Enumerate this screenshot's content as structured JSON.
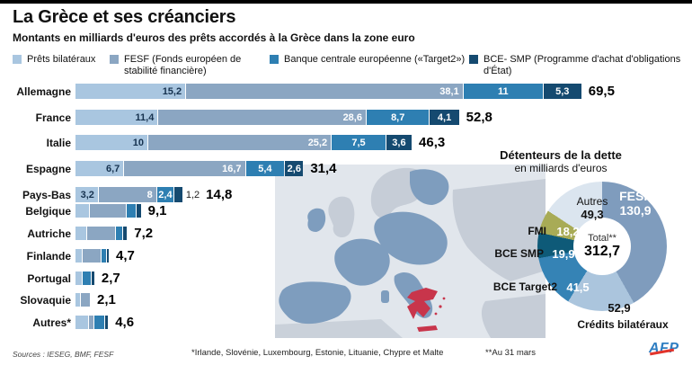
{
  "header": {
    "title": "La Grèce et ses créanciers",
    "subtitle": "Montants en milliards d'euros des prêts accordés à la Grèce dans la zone euro"
  },
  "legend": [
    {
      "label": "Prêts bilatéraux",
      "color": "#a9c6e0"
    },
    {
      "label": "FESF (Fonds européen de stabilité financière)",
      "color": "#8ba6c2"
    },
    {
      "label": "Banque centrale européenne («Target2»)",
      "color": "#2e7fb2"
    },
    {
      "label": "BCE- SMP (Programme d'achat d'obligations d'État)",
      "color": "#154a70"
    }
  ],
  "chart_data": [
    {
      "type": "bar",
      "stacked": true,
      "orientation": "horizontal",
      "unit": "milliards d'euros",
      "series_names": [
        "Prêts bilatéraux",
        "FESF",
        "BCE Target2 (Banque centrale européenne)",
        "BCE SMP"
      ],
      "colors": [
        "#a9c6e0",
        "#8ba6c2",
        "#2e7fb2",
        "#154a70"
      ],
      "xlim": [
        0,
        70
      ],
      "rows": [
        {
          "country": "Allemagne",
          "segments": [
            15.2,
            38.1,
            11,
            5.3
          ],
          "segment_labels": [
            "15,2",
            "38,1",
            "11",
            "5,3"
          ],
          "total": 69.5,
          "total_label": "69,5"
        },
        {
          "country": "France",
          "segments": [
            11.4,
            28.6,
            8.7,
            4.1
          ],
          "segment_labels": [
            "11,4",
            "28,6",
            "8,7",
            "4,1"
          ],
          "total": 52.8,
          "total_label": "52,8"
        },
        {
          "country": "Italie",
          "segments": [
            10,
            25.2,
            7.5,
            3.6
          ],
          "segment_labels": [
            "10",
            "25,2",
            "7,5",
            "3,6"
          ],
          "total": 46.3,
          "total_label": "46,3"
        },
        {
          "country": "Espagne",
          "segments": [
            6.7,
            16.7,
            5.4,
            2.6
          ],
          "segment_labels": [
            "6,7",
            "16,7",
            "5,4",
            "2,6"
          ],
          "total": 31.4,
          "total_label": "31,4"
        },
        {
          "country": "Pays-Bas",
          "segments": [
            3.2,
            8,
            2.4,
            1.2
          ],
          "segment_labels": [
            "3,2",
            "8",
            "2,4",
            ""
          ],
          "outside_label": "1,2",
          "total": 14.8,
          "total_label": "14,8"
        },
        {
          "country": "Belgique",
          "segments": [
            2.0,
            5.0,
            1.4,
            0.7
          ],
          "segment_labels": [
            "",
            "",
            "",
            ""
          ],
          "total": 9.1,
          "total_label": "9,1"
        },
        {
          "country": "Autriche",
          "segments": [
            1.6,
            3.9,
            1.1,
            0.6
          ],
          "segment_labels": [
            "",
            "",
            "",
            ""
          ],
          "total": 7.2,
          "total_label": "7,2"
        },
        {
          "country": "Finlande",
          "segments": [
            1.0,
            2.6,
            0.7,
            0.4
          ],
          "segment_labels": [
            "",
            "",
            "",
            ""
          ],
          "total": 4.7,
          "total_label": "4,7"
        },
        {
          "country": "Portugal",
          "segments": [
            1.0,
            0,
            1.2,
            0.5
          ],
          "segment_labels": [
            "",
            "",
            "",
            ""
          ],
          "total": 2.7,
          "total_label": "2,7"
        },
        {
          "country": "Slovaquie",
          "segments": [
            0.8,
            1.3,
            0,
            0
          ],
          "segment_labels": [
            "",
            "",
            "",
            ""
          ],
          "total": 2.1,
          "total_label": "2,1"
        },
        {
          "country": "Autres*",
          "segments": [
            1.9,
            0.7,
            1.5,
            0.5
          ],
          "segment_labels": [
            "",
            "",
            "",
            ""
          ],
          "total": 4.6,
          "total_label": "4,6"
        }
      ]
    },
    {
      "type": "pie",
      "title": "Détenteurs de la dette",
      "subtitle": "en milliards d'euros",
      "center_label": "Total**",
      "center_value": "312,7",
      "start_angle_deg": 0,
      "direction": "clockwise",
      "slices": [
        {
          "label": "FESF",
          "value": 130.9,
          "display": "130,9",
          "color": "#7f9cbd"
        },
        {
          "label": "Crédits bilatéraux",
          "value": 52.9,
          "display": "52,9",
          "color": "#abc5dd"
        },
        {
          "label": "BCE Target2",
          "value": 41.5,
          "display": "41,5",
          "color": "#3583b5"
        },
        {
          "label": "BCE SMP",
          "value": 19.9,
          "display": "19,9",
          "color": "#0e5a78"
        },
        {
          "label": "FMI",
          "value": 18.2,
          "display": "18,2",
          "color": "#a8ab56"
        },
        {
          "label": "Autres",
          "value": 49.3,
          "display": "49,3",
          "color": "#dbe5ef"
        }
      ]
    }
  ],
  "map": {
    "description": "Carte de l'Europe, zone euro en bleu, Grèce en rouge",
    "sea_color": "#e1e6ec",
    "eurozone_color": "#7e9dbe",
    "other_color": "#c6cdd7",
    "greece_color": "#c8354b"
  },
  "footer": {
    "sources": "Sources : IESEG, BMF, FESF",
    "footnote_countries": "*Irlande, Slovénie, Luxembourg, Estonie, Lituanie, Chypre et Malte",
    "footnote_date": "**Au 31 mars",
    "logo": "AFP"
  }
}
